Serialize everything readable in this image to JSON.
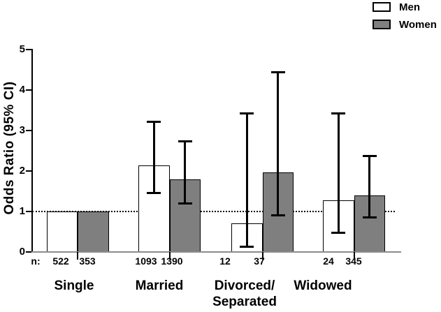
{
  "legend": {
    "items": [
      {
        "label": "Men",
        "swatch_color": "#ffffff"
      },
      {
        "label": "Women",
        "swatch_color": "#7f7f7f"
      }
    ]
  },
  "chart_data": {
    "type": "bar",
    "title": "",
    "ylabel": "Odds Ratio (95% CI)",
    "xlabel": "",
    "ylim": [
      0,
      5
    ],
    "yticks": [
      0,
      1,
      2,
      3,
      4,
      5
    ],
    "reference_line_y": 1,
    "grid": false,
    "legend_position": "top-right",
    "n_prefix": "n:",
    "categories": [
      "Single",
      "Married",
      "Divorced/\nSeparated",
      "Widowed"
    ],
    "series": [
      {
        "name": "Men",
        "color": "#ffffff",
        "border_color": "#000000",
        "values": [
          1.0,
          2.13,
          0.7,
          1.27
        ],
        "ci_low": [
          null,
          1.45,
          0.13,
          0.48
        ],
        "ci_high": [
          null,
          3.22,
          3.43,
          3.43
        ],
        "n": [
          522,
          1093,
          12,
          24
        ]
      },
      {
        "name": "Women",
        "color": "#7f7f7f",
        "border_color": "#000000",
        "values": [
          1.0,
          1.79,
          1.97,
          1.4
        ],
        "ci_low": [
          null,
          1.2,
          0.9,
          0.85
        ],
        "ci_high": [
          null,
          2.74,
          4.44,
          2.37
        ],
        "n": [
          353,
          1390,
          37,
          345
        ]
      }
    ],
    "colors": {
      "error_bar": "#000000",
      "reference_line": "#000000",
      "y_axis": "#000000",
      "x_axis": "#8c8c8c",
      "text": "#000000"
    }
  }
}
